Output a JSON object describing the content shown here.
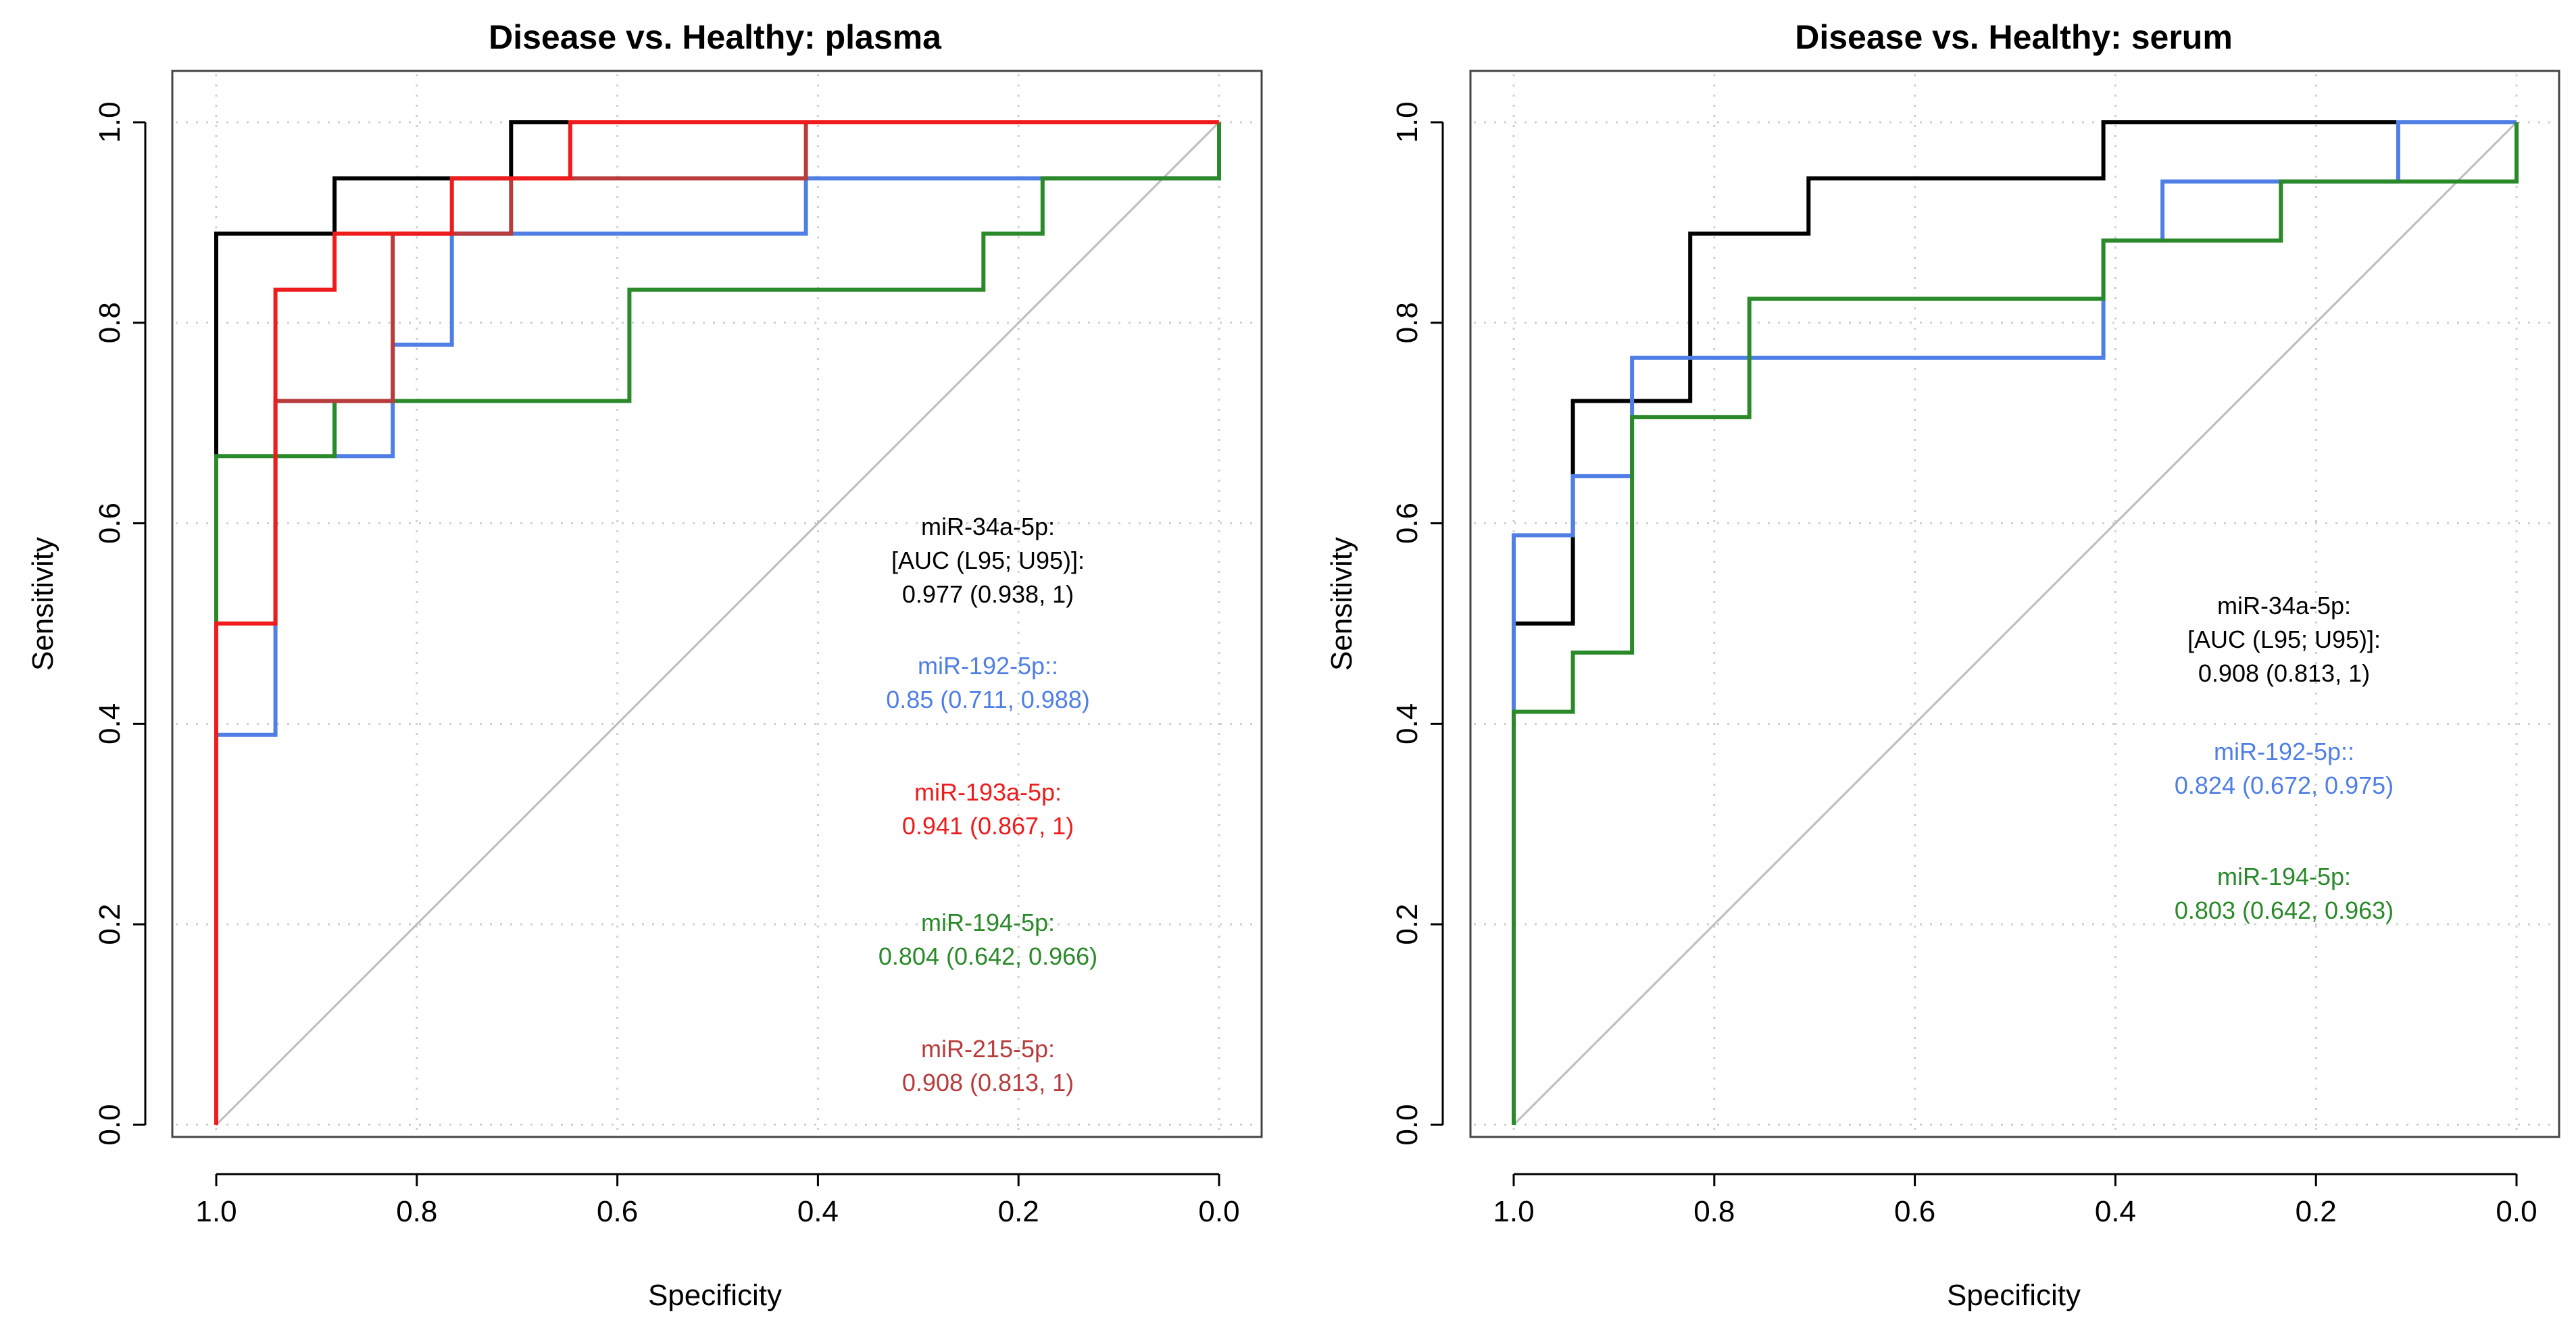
{
  "chart_data": [
    {
      "type": "line",
      "title": "Disease vs. Healthy: plasma",
      "xlabel": "Specificity",
      "ylabel": "Sensitivity",
      "xlim": [
        1.0,
        0.0
      ],
      "ylim": [
        0.0,
        1.0
      ],
      "x_ticks": [
        "1.0",
        "0.8",
        "0.6",
        "0.4",
        "0.2",
        "0.0"
      ],
      "y_ticks": [
        "0.0",
        "0.2",
        "0.4",
        "0.6",
        "0.8",
        "1.0"
      ],
      "grid": true,
      "annotation_header": [
        "miR-34a-5p:",
        "[AUC (L95; U95)]:"
      ],
      "series": [
        {
          "name": "miR-34a-5p",
          "color": "#000000",
          "label": "miR-34a-5p:",
          "auc_text": "0.977 (0.938, 1)",
          "points": [
            [
              1.0,
              0.0
            ],
            [
              1.0,
              0.667
            ],
            [
              1.0,
              0.889
            ],
            [
              0.882,
              0.889
            ],
            [
              0.882,
              0.944
            ],
            [
              0.706,
              0.944
            ],
            [
              0.706,
              1.0
            ],
            [
              0.0,
              1.0
            ]
          ]
        },
        {
          "name": "miR-192-5p",
          "color": "#4f7fe5",
          "label": "miR-192-5p::",
          "auc_text": "0.85 (0.711, 0.988)",
          "points": [
            [
              1.0,
              0.0
            ],
            [
              1.0,
              0.389
            ],
            [
              0.941,
              0.389
            ],
            [
              0.941,
              0.722
            ],
            [
              0.882,
              0.722
            ],
            [
              0.882,
              0.667
            ],
            [
              0.824,
              0.667
            ],
            [
              0.824,
              0.778
            ],
            [
              0.765,
              0.778
            ],
            [
              0.765,
              0.889
            ],
            [
              0.412,
              0.889
            ],
            [
              0.412,
              0.944
            ],
            [
              0.0,
              0.944
            ],
            [
              0.0,
              1.0
            ]
          ]
        },
        {
          "name": "miR-193a-5p",
          "color": "#ee1c1c",
          "label": "miR-193a-5p:",
          "auc_text": "0.941 (0.867, 1)",
          "points": [
            [
              1.0,
              0.0
            ],
            [
              1.0,
              0.5
            ],
            [
              0.941,
              0.5
            ],
            [
              0.941,
              0.833
            ],
            [
              0.882,
              0.833
            ],
            [
              0.882,
              0.889
            ],
            [
              0.765,
              0.889
            ],
            [
              0.765,
              0.944
            ],
            [
              0.647,
              0.944
            ],
            [
              0.647,
              1.0
            ],
            [
              0.0,
              1.0
            ]
          ]
        },
        {
          "name": "miR-194-5p",
          "color": "#2a8a2a",
          "label": "miR-194-5p:",
          "auc_text": "0.804 (0.642, 0.966)",
          "points": [
            [
              1.0,
              0.0
            ],
            [
              1.0,
              0.667
            ],
            [
              0.882,
              0.667
            ],
            [
              0.882,
              0.722
            ],
            [
              0.588,
              0.722
            ],
            [
              0.588,
              0.833
            ],
            [
              0.235,
              0.833
            ],
            [
              0.235,
              0.889
            ],
            [
              0.176,
              0.889
            ],
            [
              0.176,
              0.944
            ],
            [
              0.0,
              0.944
            ],
            [
              0.0,
              1.0
            ]
          ]
        },
        {
          "name": "miR-215-5p",
          "color": "#b83c3c",
          "label": "miR-215-5p:",
          "auc_text": "0.908 (0.813, 1)",
          "points": [
            [
              1.0,
              0.0
            ],
            [
              1.0,
              0.5
            ],
            [
              0.941,
              0.5
            ],
            [
              0.941,
              0.722
            ],
            [
              0.824,
              0.722
            ],
            [
              0.824,
              0.889
            ],
            [
              0.706,
              0.889
            ],
            [
              0.706,
              0.944
            ],
            [
              0.412,
              0.944
            ],
            [
              0.412,
              1.0
            ],
            [
              0.0,
              1.0
            ]
          ]
        }
      ]
    },
    {
      "type": "line",
      "title": "Disease vs. Healthy: serum",
      "xlabel": "Specificity",
      "ylabel": "Sensitivity",
      "xlim": [
        1.0,
        0.0
      ],
      "ylim": [
        0.0,
        1.0
      ],
      "x_ticks": [
        "1.0",
        "0.8",
        "0.6",
        "0.4",
        "0.2",
        "0.0"
      ],
      "y_ticks": [
        "0.0",
        "0.2",
        "0.4",
        "0.6",
        "0.8",
        "1.0"
      ],
      "grid": true,
      "annotation_header": [
        "miR-34a-5p:",
        "[AUC (L95; U95)]:"
      ],
      "series": [
        {
          "name": "miR-34a-5p",
          "color": "#000000",
          "label": "miR-34a-5p:",
          "auc_text": "0.908 (0.813, 1)",
          "points": [
            [
              1.0,
              0.0
            ],
            [
              1.0,
              0.5
            ],
            [
              0.941,
              0.5
            ],
            [
              0.941,
              0.722
            ],
            [
              0.824,
              0.722
            ],
            [
              0.824,
              0.889
            ],
            [
              0.706,
              0.889
            ],
            [
              0.706,
              0.944
            ],
            [
              0.412,
              0.944
            ],
            [
              0.412,
              1.0
            ],
            [
              0.0,
              1.0
            ]
          ]
        },
        {
          "name": "miR-192-5p",
          "color": "#4f7fe5",
          "label": "miR-192-5p::",
          "auc_text": "0.824 (0.672, 0.975)",
          "points": [
            [
              1.0,
              0.0
            ],
            [
              1.0,
              0.588
            ],
            [
              0.941,
              0.588
            ],
            [
              0.941,
              0.647
            ],
            [
              0.882,
              0.647
            ],
            [
              0.882,
              0.765
            ],
            [
              0.412,
              0.765
            ],
            [
              0.412,
              0.882
            ],
            [
              0.353,
              0.882
            ],
            [
              0.353,
              0.941
            ],
            [
              0.118,
              0.941
            ],
            [
              0.118,
              1.0
            ],
            [
              0.0,
              1.0
            ]
          ]
        },
        {
          "name": "miR-194-5p",
          "color": "#2a8a2a",
          "label": "miR-194-5p:",
          "auc_text": "0.803 (0.642, 0.963)",
          "points": [
            [
              1.0,
              0.0
            ],
            [
              1.0,
              0.412
            ],
            [
              0.941,
              0.412
            ],
            [
              0.941,
              0.471
            ],
            [
              0.882,
              0.471
            ],
            [
              0.882,
              0.706
            ],
            [
              0.765,
              0.706
            ],
            [
              0.765,
              0.824
            ],
            [
              0.412,
              0.824
            ],
            [
              0.412,
              0.882
            ],
            [
              0.235,
              0.882
            ],
            [
              0.235,
              0.941
            ],
            [
              0.0,
              0.941
            ],
            [
              0.0,
              1.0
            ]
          ]
        }
      ]
    }
  ]
}
